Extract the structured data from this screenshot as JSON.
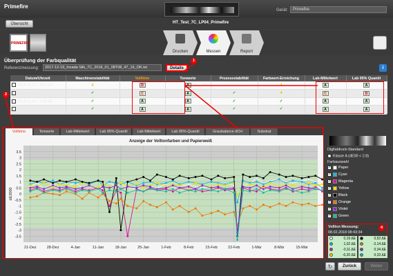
{
  "app": {
    "title": "Primefire",
    "device_label": "Gerät:",
    "device_value": "Primefire",
    "overview_button": "Übersicht",
    "job_name": "HT_Test_7C_LP04_Primefire"
  },
  "workflow": [
    {
      "label": "Drucken",
      "state": "inactive"
    },
    {
      "label": "Messen",
      "state": "active"
    },
    {
      "label": "Report",
      "state": "inactive"
    }
  ],
  "thumbs": {
    "label": "PRIMEFIRE"
  },
  "section": {
    "title": "Überprüfung der Farbqualität",
    "ref_label": "Referenzmessung:",
    "ref_value": "2017-12-19_Incada Silk_7C_2018_01_08T08_47_16_OK.txt",
    "details_button": "Details"
  },
  "table": {
    "columns": [
      "Datum/Uhrzeit",
      "Maschinenstabilität",
      "Volltöne",
      "Tonwerte",
      "Prozessstabilität",
      "Farbwert-Erreichung",
      "Lab-Mittelwert",
      "Lab 95% Quantil"
    ],
    "rows": [
      {
        "checked": true,
        "date": "2018.01.12 - 8:57:14",
        "machine": "4",
        "volltone": "D",
        "tonwerte": "A",
        "process": "",
        "farbwert": "4",
        "labmean": "A",
        "lab95": "A"
      },
      {
        "checked": true,
        "date": "2018.01.11 - 9:38:37",
        "machine": "✓",
        "volltone": "C",
        "tonwerte": "A",
        "process": "✓",
        "farbwert": "4",
        "labmean": "C",
        "lab95": "D"
      },
      {
        "checked": true,
        "date": "2018.01.10 - 7:28:35",
        "machine": "✓",
        "volltone": "A",
        "tonwerte": "A",
        "process": "✓",
        "farbwert": "✓",
        "labmean": "A",
        "lab95": "A"
      },
      {
        "checked": true,
        "date": "2018.01.09 - 11:04:19",
        "machine": "✓",
        "volltone": "A",
        "tonwerte": "A",
        "process": "✓",
        "farbwert": "✓",
        "labmean": "A",
        "lab95": "A"
      }
    ]
  },
  "markers": {
    "m1": "1",
    "m2": "2",
    "m3": "3",
    "m4": "4"
  },
  "tabs": [
    "Volltöne",
    "Tonwerte",
    "Lab-Mittelwert",
    "Lab 95%-Quantil",
    "Lab-Mittelwert",
    "Lab 95%-Quantil",
    "Graubalance dCH",
    "Substrat"
  ],
  "active_tab_index": 0,
  "chart_data": {
    "type": "line",
    "title": "Anzeige der Volltonfarben und Papierweiß",
    "xlabel": "",
    "ylabel": "dE2000",
    "ylim": [
      -4,
      4
    ],
    "yticks": [
      3.5,
      3,
      2.5,
      2,
      1.5,
      1,
      0.5,
      0,
      -0.5,
      -1,
      -1.5,
      -2,
      -2.5,
      -3,
      -3.5
    ],
    "xticks": [
      "21-Dez",
      "28-Dez",
      "4-Jan",
      "11-Jan",
      "18-Jan",
      "25-Jan",
      "1-Feb",
      "8-Feb",
      "15-Feb",
      "22-Feb",
      "1-Mär",
      "8-Mär",
      "15-Mär"
    ],
    "x": [
      0,
      0.3,
      0.6,
      1,
      1.3,
      1.6,
      2,
      2.3,
      2.6,
      3,
      3.2,
      3.5,
      3.8,
      4,
      4.3,
      4.7,
      5,
      5.3,
      5.6,
      6,
      6.3,
      6.6,
      7,
      7.3,
      7.6,
      8,
      8.3,
      8.6,
      9,
      9.15,
      9.4,
      9.7,
      10,
      10.3,
      10.6,
      11,
      11.3,
      11.6,
      12,
      12.3,
      12.6,
      12.9
    ],
    "series": [
      {
        "name": "Paper",
        "color": "#ffffff",
        "values": [
          0.6,
          0.9,
          0.4,
          0.8,
          0.5,
          0.6,
          0.9,
          0.5,
          0.7,
          0.3,
          0.8,
          0.9,
          0.6,
          0.9,
          0.5,
          0.4,
          0.7,
          0.6,
          0.5,
          0.8,
          0.5,
          0.6,
          0.8,
          0.6,
          0.5,
          0.6,
          0.8,
          0.9,
          0.7,
          -0.5,
          0.7,
          0.8,
          1.3,
          0.9,
          1.1,
          1.2,
          1.0,
          0.9,
          1.1,
          1.2,
          1.0,
          1.3
        ]
      },
      {
        "name": "Cyan",
        "color": "#19b4e8",
        "values": [
          0.8,
          1.0,
          0.9,
          1.1,
          0.8,
          1.0,
          0.9,
          1.0,
          0.8,
          1.1,
          0.7,
          1.0,
          0.9,
          0.8,
          1.0,
          0.7,
          0.9,
          1.0,
          0.8,
          0.9,
          1.1,
          0.8,
          1.0,
          0.9,
          0.8,
          1.0,
          0.9,
          0.8,
          1.0,
          -0.7,
          1.1,
          0.9,
          1.0,
          0.8,
          1.0,
          1.2,
          0.9,
          1.1,
          1.0,
          0.8,
          0.9,
          0.5
        ]
      },
      {
        "name": "Magenta",
        "color": "#e0109b",
        "values": [
          0.3,
          0.5,
          0.2,
          0.4,
          0.3,
          0.5,
          0.2,
          0.4,
          0.3,
          0.5,
          0.3,
          -1.0,
          0.3,
          0.1,
          -3.5,
          0.4,
          0.2,
          0.5,
          0.3,
          0.4,
          0.2,
          0.5,
          0.3,
          0.4,
          0.2,
          0.3,
          0.5,
          0.3,
          0.4,
          -3.2,
          0.5,
          0.3,
          0.2,
          0.6,
          0.4,
          0.3,
          0.5,
          0.2,
          0.4,
          0.3,
          0.6,
          0.2
        ]
      },
      {
        "name": "Yellow",
        "color": "#f2e000",
        "values": [
          0.7,
          0.6,
          0.9,
          0.5,
          0.8,
          0.7,
          0.6,
          0.9,
          0.7,
          0.5,
          0.8,
          0.6,
          0.7,
          0.9,
          0.6,
          0.8,
          0.5,
          0.7,
          0.9,
          0.6,
          0.8,
          0.7,
          0.5,
          0.9,
          0.7,
          0.6,
          0.8,
          0.7,
          0.9,
          -0.2,
          0.6,
          0.8,
          0.7,
          0.5,
          0.9,
          0.6,
          0.8,
          0.7,
          0.6,
          0.9,
          0.7,
          0.8
        ]
      },
      {
        "name": "Black",
        "color": "#000000",
        "values": [
          1.1,
          1.0,
          1.2,
          0.9,
          1.1,
          1.0,
          1.2,
          1.0,
          0.9,
          1.1,
          1.0,
          -1.5,
          1.3,
          -3.0,
          1.0,
          1.2,
          1.4,
          1.1,
          1.6,
          1.4,
          1.2,
          1.5,
          1.3,
          1.4,
          1.5,
          1.2,
          1.5,
          1.3,
          1.4,
          -3.5,
          1.6,
          1.4,
          1.5,
          1.3,
          1.8,
          1.6,
          1.4,
          1.5,
          1.3,
          1.4,
          1.5,
          1.2
        ]
      },
      {
        "name": "Orange",
        "color": "#f07800",
        "values": [
          -0.3,
          -0.2,
          0.1,
          0.0,
          -0.1,
          0.2,
          0.0,
          -0.4,
          0.1,
          -0.3,
          0.0,
          -0.6,
          -0.8,
          -0.4,
          -1.0,
          -1.2,
          -0.6,
          -0.9,
          -1.1,
          -0.7,
          -1.3,
          -1.0,
          -1.5,
          -1.2,
          -1.8,
          -1.6,
          -1.4,
          -1.7,
          -1.5,
          -2.6,
          -1.2,
          -1.0,
          -1.3,
          -0.9,
          -1.1,
          -0.8,
          -1.0,
          -0.7,
          -0.9,
          -0.8,
          -1.0,
          -0.9
        ]
      },
      {
        "name": "Violet",
        "color": "#8a2be2",
        "values": [
          0.5,
          0.6,
          0.4,
          0.7,
          0.5,
          0.6,
          0.4,
          0.5,
          0.7,
          0.4,
          0.6,
          0.5,
          0.7,
          0.4,
          0.6,
          0.5,
          0.7,
          0.6,
          0.4,
          0.5,
          0.7,
          0.5,
          0.6,
          0.4,
          0.7,
          0.5,
          0.6,
          0.4,
          0.5,
          -3.2,
          0.6,
          0.5,
          0.7,
          0.4,
          0.6,
          0.5,
          0.7,
          0.4,
          0.6,
          0.5,
          0.4,
          0.3
        ]
      },
      {
        "name": "Green",
        "color": "#1abc9c",
        "values": [
          0.2,
          0.4,
          0.1,
          0.3,
          0.2,
          0.4,
          0.1,
          0.3,
          0.2,
          0.4,
          0.1,
          0.3,
          0.2,
          0.4,
          0.1,
          0.3,
          0.2,
          0.4,
          0.3,
          0.2,
          0.4,
          0.1,
          0.3,
          0.2,
          0.4,
          0.3,
          0.2,
          0.4,
          0.1,
          -3.8,
          0.3,
          0.2,
          0.4,
          0.1,
          0.3,
          0.2,
          0.4,
          0.3,
          0.1,
          0.2,
          0.4,
          0.3
        ]
      }
    ]
  },
  "right": {
    "standard_label": "Digitaldruck-Standard",
    "class_label": "Klasse A (dE00 < 2.8)",
    "colors_label": "Farbauswahl",
    "colors": [
      {
        "name": "Paper",
        "color": "#ffffff"
      },
      {
        "name": "Cyan",
        "color": "#19b4e8"
      },
      {
        "name": "Magenta",
        "color": "#e0109b"
      },
      {
        "name": "Yellow",
        "color": "#f2e000"
      },
      {
        "name": "Black",
        "color": "#000000"
      },
      {
        "name": "Orange",
        "color": "#f07800"
      },
      {
        "name": "Violet",
        "color": "#8a2be2"
      },
      {
        "name": "Green",
        "color": "#1abc9c"
      }
    ]
  },
  "measurement": {
    "title": "Vollton Messung:",
    "date": "08.02.2018 08:43:34",
    "values": [
      {
        "v": "0,19 ΔE",
        "color": "#ffffff"
      },
      {
        "v": "0,52 ΔE",
        "color": "#000000"
      },
      {
        "v": "1,02 ΔE",
        "color": "#19b4e8"
      },
      {
        "v": "-2,14 ΔE",
        "color": "#f07800"
      },
      {
        "v": "-0,11 ΔE",
        "color": "#e0109b"
      },
      {
        "v": "0,34 ΔE",
        "color": "#8a2be2"
      },
      {
        "v": "-0,20 ΔE",
        "color": "#f2e000"
      },
      {
        "v": "0,33 ΔE",
        "color": "#1abc9c"
      }
    ]
  },
  "footer": {
    "back": "Zurück",
    "next": "Weiter"
  }
}
